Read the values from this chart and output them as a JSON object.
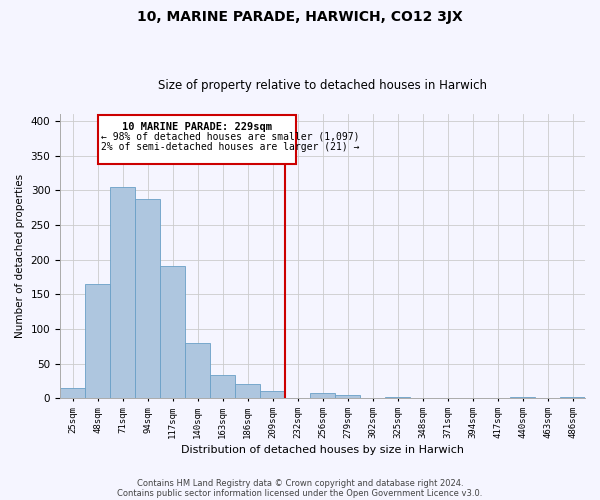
{
  "title": "10, MARINE PARADE, HARWICH, CO12 3JX",
  "subtitle": "Size of property relative to detached houses in Harwich",
  "xlabel": "Distribution of detached houses by size in Harwich",
  "ylabel": "Number of detached properties",
  "bin_labels": [
    "25sqm",
    "48sqm",
    "71sqm",
    "94sqm",
    "117sqm",
    "140sqm",
    "163sqm",
    "186sqm",
    "209sqm",
    "232sqm",
    "256sqm",
    "279sqm",
    "302sqm",
    "325sqm",
    "348sqm",
    "371sqm",
    "394sqm",
    "417sqm",
    "440sqm",
    "463sqm",
    "486sqm"
  ],
  "bin_values": [
    15,
    165,
    305,
    288,
    190,
    79,
    33,
    20,
    10,
    0,
    8,
    4,
    0,
    2,
    0,
    0,
    0,
    0,
    1,
    0,
    1
  ],
  "bar_color": "#aec6df",
  "bar_edge_color": "#6aa0c7",
  "vline_color": "#cc0000",
  "ylim": [
    0,
    410
  ],
  "yticks": [
    0,
    50,
    100,
    150,
    200,
    250,
    300,
    350,
    400
  ],
  "annotation_title": "10 MARINE PARADE: 229sqm",
  "annotation_line1": "← 98% of detached houses are smaller (1,097)",
  "annotation_line2": "2% of semi-detached houses are larger (21) →",
  "annotation_box_color": "#cc0000",
  "footnote1": "Contains HM Land Registry data © Crown copyright and database right 2024.",
  "footnote2": "Contains public sector information licensed under the Open Government Licence v3.0.",
  "background_color": "#f5f5ff",
  "grid_color": "#cccccc"
}
